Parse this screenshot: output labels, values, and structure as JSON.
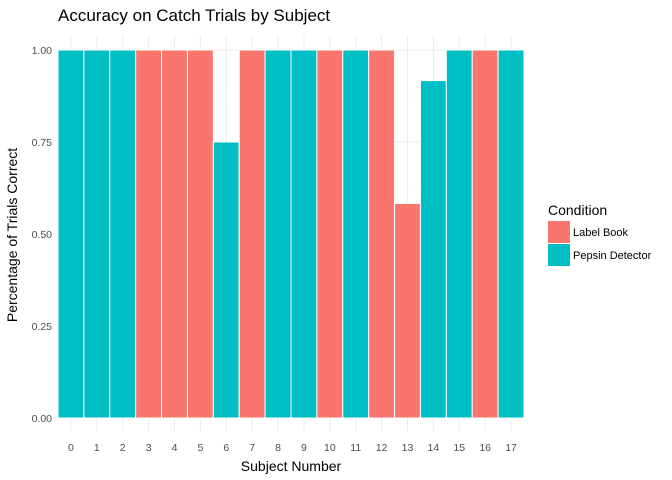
{
  "chart_data": {
    "type": "bar",
    "title": "Accuracy on Catch Trials by Subject",
    "xlabel": "Subject Number",
    "ylabel": "Percentage of Trials Correct",
    "categories": [
      "0",
      "1",
      "2",
      "3",
      "4",
      "5",
      "6",
      "7",
      "8",
      "9",
      "10",
      "11",
      "12",
      "13",
      "14",
      "15",
      "16",
      "17"
    ],
    "values": [
      1.0,
      1.0,
      1.0,
      1.0,
      1.0,
      1.0,
      0.75,
      1.0,
      1.0,
      1.0,
      1.0,
      1.0,
      1.0,
      0.583,
      0.917,
      1.0,
      1.0,
      1.0
    ],
    "condition": [
      "Pepsin Detector",
      "Pepsin Detector",
      "Pepsin Detector",
      "Label Book",
      "Label Book",
      "Label Book",
      "Pepsin Detector",
      "Label Book",
      "Pepsin Detector",
      "Pepsin Detector",
      "Label Book",
      "Pepsin Detector",
      "Label Book",
      "Label Book",
      "Pepsin Detector",
      "Pepsin Detector",
      "Label Book",
      "Pepsin Detector"
    ],
    "ylim": [
      0,
      1
    ],
    "y_ticks": [
      "0.00",
      "0.25",
      "0.50",
      "0.75",
      "1.00"
    ],
    "grid": true,
    "legend": {
      "title": "Condition",
      "position": "right",
      "entries": [
        {
          "label": "Label Book",
          "color": "#F8766D"
        },
        {
          "label": "Pepsin Detector",
          "color": "#00BFC4"
        }
      ]
    }
  }
}
